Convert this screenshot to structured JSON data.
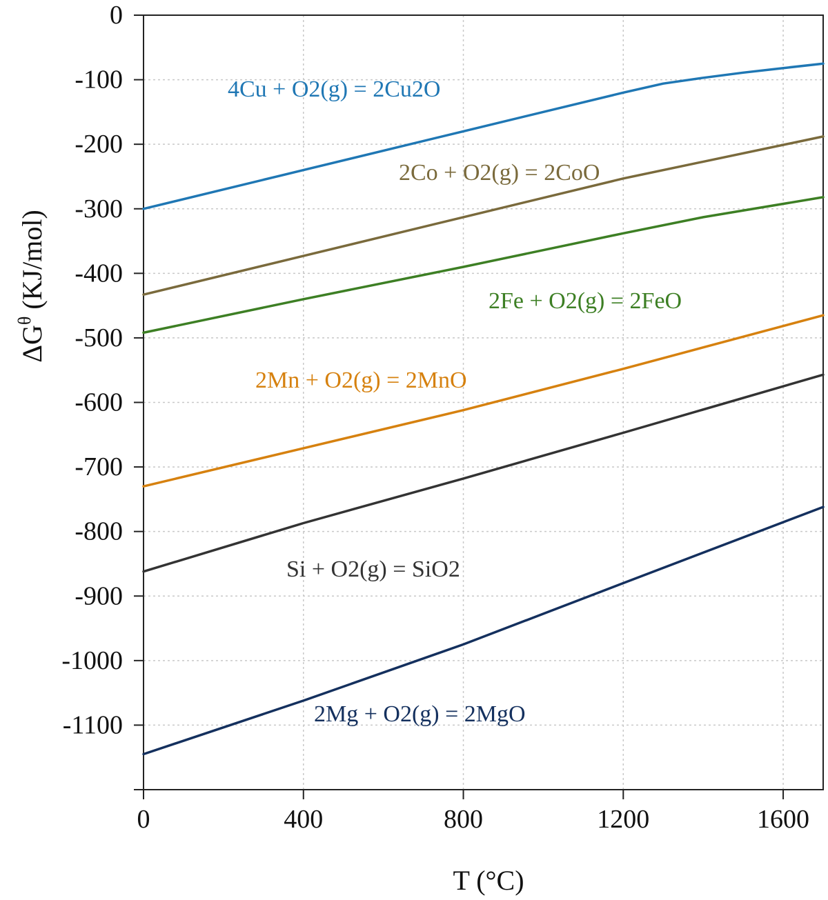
{
  "chart_data": {
    "type": "line",
    "xlabel": "T (°C)",
    "ylabel_main": "ΔG",
    "ylabel_sup": "θ",
    "ylabel_units": " (KJ/mol)",
    "xlim": [
      0,
      1700
    ],
    "ylim": [
      -1200,
      0
    ],
    "grid": true,
    "x_ticks": [
      0,
      400,
      800,
      1200,
      1600
    ],
    "y_ticks": [
      0,
      -100,
      -200,
      -300,
      -400,
      -500,
      -600,
      -700,
      -800,
      -900,
      -1000,
      -1100
    ],
    "series": [
      {
        "name": "4Cu + O2(g) = 2Cu2O",
        "color": "#1f77b4",
        "x": [
          0,
          400,
          800,
          1200,
          1300,
          1400,
          1500,
          1600,
          1700
        ],
        "y": [
          -300,
          -240,
          -180,
          -120,
          -106,
          -97,
          -89,
          -82,
          -75
        ]
      },
      {
        "name": "2Co + O2(g) = 2CoO",
        "color": "#7a6a3c",
        "x": [
          0,
          400,
          800,
          1200,
          1700
        ],
        "y": [
          -433,
          -373,
          -313,
          -253,
          -188
        ]
      },
      {
        "name": "2Fe + O2(g) = 2FeO",
        "color": "#3d7f24",
        "x": [
          0,
          400,
          800,
          1200,
          1400,
          1700
        ],
        "y": [
          -492,
          -440,
          -390,
          -338,
          -313,
          -282
        ]
      },
      {
        "name": "2Mn + O2(g) = 2MnO",
        "color": "#d6810f",
        "x": [
          0,
          400,
          800,
          1200,
          1700
        ],
        "y": [
          -730,
          -671,
          -612,
          -548,
          -465
        ]
      },
      {
        "name": "Si + O2(g) = SiO2",
        "color": "#333333",
        "x": [
          0,
          400,
          800,
          1200,
          1700
        ],
        "y": [
          -862,
          -787,
          -718,
          -647,
          -557
        ]
      },
      {
        "name": "2Mg + O2(g) = 2MgO",
        "color": "#14305e",
        "x": [
          0,
          400,
          800,
          1200,
          1700
        ],
        "y": [
          -1145,
          -1062,
          -975,
          -880,
          -762
        ]
      }
    ]
  }
}
